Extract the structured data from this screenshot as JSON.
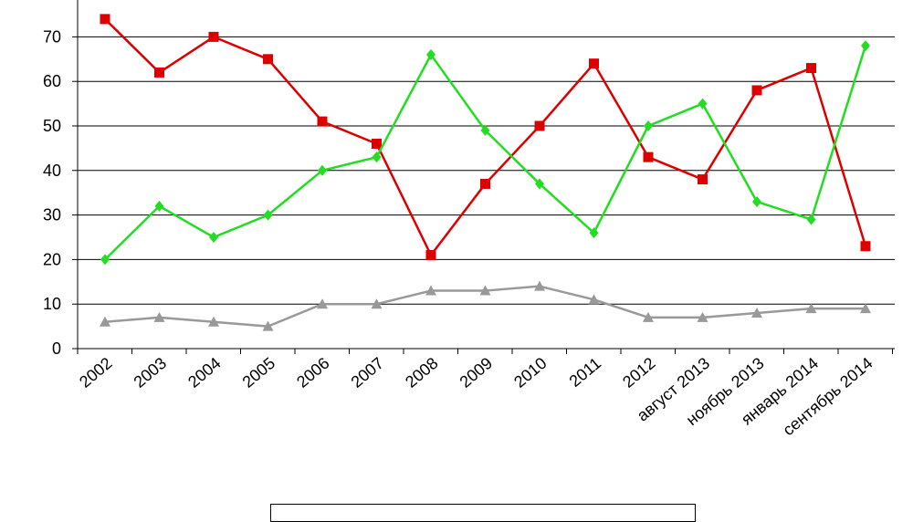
{
  "chart_data": {
    "type": "line",
    "categories": [
      "2002",
      "2003",
      "2004",
      "2005",
      "2006",
      "2007",
      "2008",
      "2009",
      "2010",
      "2011",
      "2012",
      "август 2013",
      "ноябрь 2013",
      "январь 2014",
      "сентябрь 2014"
    ],
    "series": [
      {
        "color": "#dd0000",
        "marker": "square",
        "values": [
          74,
          62,
          70,
          65,
          51,
          46,
          21,
          37,
          50,
          64,
          43,
          38,
          58,
          63,
          23
        ]
      },
      {
        "color": "#22dd22",
        "marker": "diamond",
        "values": [
          20,
          32,
          25,
          30,
          40,
          43,
          66,
          49,
          37,
          26,
          50,
          55,
          33,
          29,
          68
        ]
      },
      {
        "color": "#999999",
        "marker": "triangle",
        "values": [
          6,
          7,
          6,
          5,
          10,
          10,
          13,
          13,
          14,
          11,
          7,
          7,
          8,
          9,
          9
        ]
      }
    ],
    "y_ticks": [
      0,
      10,
      20,
      30,
      40,
      50,
      60,
      70
    ],
    "ylim": [
      0,
      80
    ],
    "grid": true,
    "legend": "bottom"
  }
}
